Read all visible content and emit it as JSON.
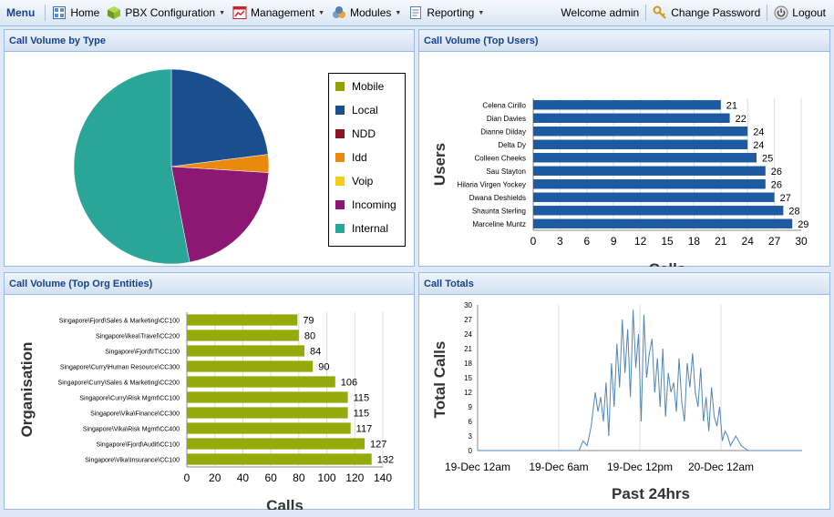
{
  "menu": {
    "title": "Menu",
    "items": [
      {
        "label": "Home",
        "icon": "home-icon"
      },
      {
        "label": "PBX Configuration",
        "icon": "cube-icon"
      },
      {
        "label": "Management",
        "icon": "chart-icon"
      },
      {
        "label": "Modules",
        "icon": "modules-icon"
      },
      {
        "label": "Reporting",
        "icon": "report-icon"
      }
    ],
    "welcome": "Welcome admin",
    "change_password": "Change Password",
    "logout": "Logout"
  },
  "panels": {
    "pie": {
      "title": "Call Volume by Type"
    },
    "users": {
      "title": "Call Volume (Top Users)"
    },
    "org": {
      "title": "Call Volume (Top Org Entities)"
    },
    "totals": {
      "title": "Call Totals"
    }
  },
  "chart_data": [
    {
      "type": "pie",
      "title": "Call Volume by Type",
      "legend": "right",
      "categories": [
        "Mobile",
        "Local",
        "NDD",
        "Idd",
        "Voip",
        "Incoming",
        "Internal"
      ],
      "values": [
        0,
        23,
        0,
        3,
        0,
        21,
        53
      ],
      "colors": [
        "#8fa300",
        "#1a4e8f",
        "#8b1420",
        "#e98a0e",
        "#f4cd1c",
        "#8c1873",
        "#2aa698"
      ]
    },
    {
      "type": "bar",
      "orientation": "horizontal",
      "title": "Call Volume (Top Users)",
      "xlabel": "Calls",
      "ylabel": "Users",
      "xlim": [
        0,
        30
      ],
      "xticks": [
        0,
        3,
        6,
        9,
        12,
        15,
        18,
        21,
        24,
        27,
        30
      ],
      "color": "#1d5aa1",
      "categories": [
        "Celena Cirillo",
        "Dian Davies",
        "Dianne Dilday",
        "Delta Dy",
        "Colleen Cheeks",
        "Sau Stayton",
        "Hilaria Virgen Yockey",
        "Dwana Deshields",
        "Shaunta Sterling",
        "Marceline Muntz"
      ],
      "values": [
        21,
        22,
        24,
        24,
        25,
        26,
        26,
        27,
        28,
        29
      ]
    },
    {
      "type": "bar",
      "orientation": "horizontal",
      "title": "Call Volume (Top Org Entities)",
      "xlabel": "Calls",
      "ylabel": "Organisation",
      "xlim": [
        0,
        140
      ],
      "xticks": [
        0,
        20,
        40,
        60,
        80,
        100,
        120,
        140
      ],
      "color": "#94aa0a",
      "categories": [
        "Singapore\\Fjord\\Sales & Marketing\\CC100",
        "Singapore\\Ikea\\Travel\\CC200",
        "Singapore\\Fjord\\IT\\CC100",
        "Singapore\\Curry\\Human Resource\\CC300",
        "Singapore\\Curry\\Sales & Marketing\\CC200",
        "Singapore\\Curry\\Risk Mgmt\\CC100",
        "Singapore\\Vika\\Finance\\CC300",
        "Singapore\\Vika\\Risk Mgmt\\CC400",
        "Singapore\\Fjord\\Audit\\CC100",
        "Singapore\\Vika\\Insurance\\CC100"
      ],
      "values": [
        79,
        80,
        84,
        90,
        106,
        115,
        115,
        117,
        127,
        132
      ]
    },
    {
      "type": "line",
      "title": "Call Totals",
      "xlabel": "Past 24hrs",
      "ylabel": "Total Calls",
      "ylim": [
        0,
        30
      ],
      "yticks": [
        0,
        3,
        6,
        9,
        12,
        15,
        18,
        21,
        24,
        27,
        30
      ],
      "xticks": [
        "19-Dec 12am",
        "19-Dec 6am",
        "19-Dec 12pm",
        "20-Dec 12am"
      ],
      "color": "#4f86b8",
      "series": [
        {
          "x_hours": [
            0,
            7.5,
            7.8,
            8.1,
            8.4,
            8.7,
            8.9,
            9.1,
            9.3,
            9.5,
            9.7,
            9.9,
            10.1,
            10.3,
            10.5,
            10.7,
            10.9,
            11.1,
            11.3,
            11.5,
            11.7,
            11.9,
            12.1,
            12.3,
            12.5,
            12.7,
            12.9,
            13.1,
            13.3,
            13.5,
            13.7,
            13.9,
            14.1,
            14.3,
            14.5,
            14.7,
            14.9,
            15.1,
            15.3,
            15.5,
            15.7,
            15.9,
            16.1,
            16.3,
            16.5,
            16.7,
            16.9,
            17.1,
            17.3,
            17.5,
            17.7,
            17.9,
            18.1,
            18.3,
            18.5,
            18.7,
            19.1,
            19.5,
            20,
            24
          ],
          "values": [
            0,
            0,
            2,
            1,
            5,
            12,
            8,
            11,
            6,
            14,
            3,
            18,
            9,
            22,
            13,
            27,
            16,
            25,
            11,
            29,
            17,
            24,
            6,
            28,
            15,
            20,
            23,
            12,
            19,
            9,
            21,
            7,
            16,
            12,
            14,
            8,
            19,
            10,
            6,
            18,
            13,
            20,
            12,
            9,
            17,
            6,
            11,
            4,
            13,
            7,
            5,
            9,
            2,
            4,
            3,
            1,
            3,
            1,
            0,
            0
          ]
        }
      ]
    }
  ]
}
